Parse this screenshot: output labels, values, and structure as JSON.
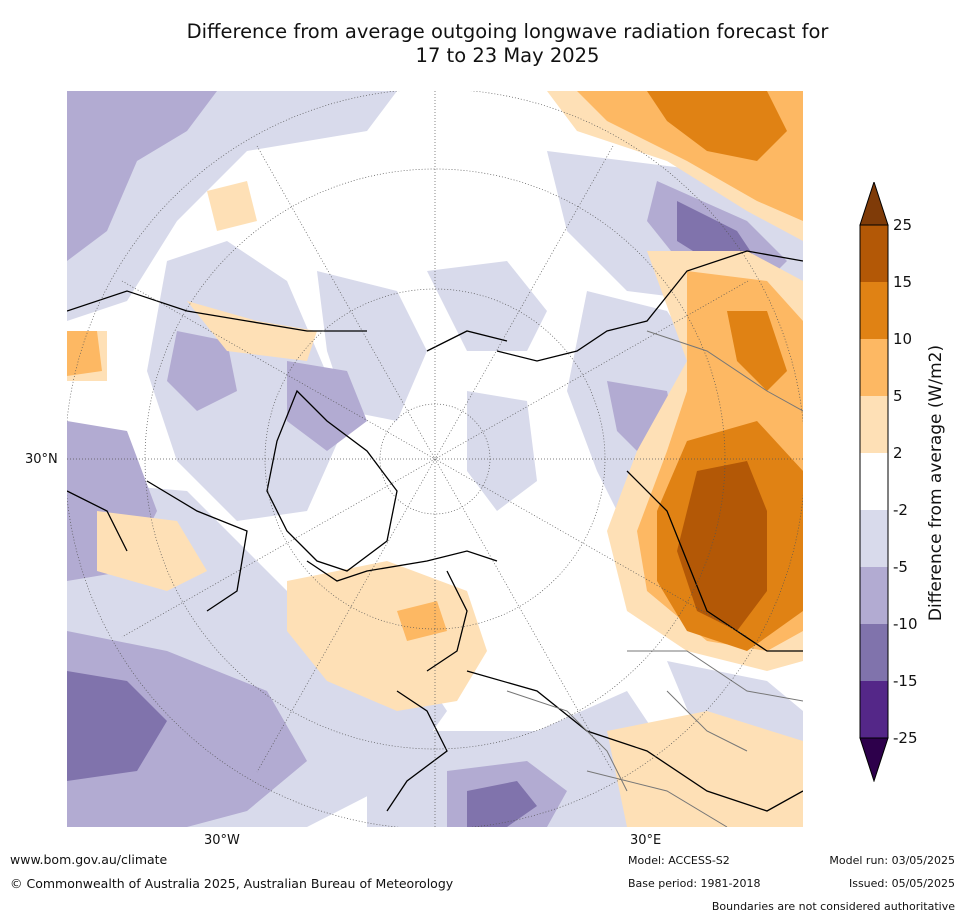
{
  "title_line1": "Difference from average outgoing longwave radiation forecast for",
  "title_line2": "17 to 23 May 2025",
  "labels": {
    "lat_left": "30°N",
    "lon_bottom_left": "30°W",
    "lon_bottom_right": "30°E"
  },
  "colorbar": {
    "label": "Difference from average (W/m2)",
    "ticks": [
      "25",
      "15",
      "10",
      "5",
      "2",
      "-2",
      "-5",
      "-10",
      "-15",
      "-25"
    ],
    "colors": {
      "gt25": "#7f3b08",
      "15_25": "#b35806",
      "10_15": "#e08214",
      "5_10": "#fdb863",
      "2_5": "#fee0b6",
      "neutral": "#ffffff",
      "m5_m2": "#d8daeb",
      "m10_m5": "#b2abd2",
      "m15_m10": "#8073ac",
      "m25_m15": "#542788",
      "lt_m25": "#2d004b"
    }
  },
  "footer": {
    "url": "www.bom.gov.au/climate",
    "copyright": "© Commonwealth of Australia 2025, Australian Bureau of Meteorology",
    "model": "Model: ACCESS-S2",
    "base_period": "Base period: 1981-2018",
    "model_run": "Model run: 03/05/2025",
    "issued": "Issued: 05/05/2025",
    "boundaries": "Boundaries are not considered authoritative"
  }
}
